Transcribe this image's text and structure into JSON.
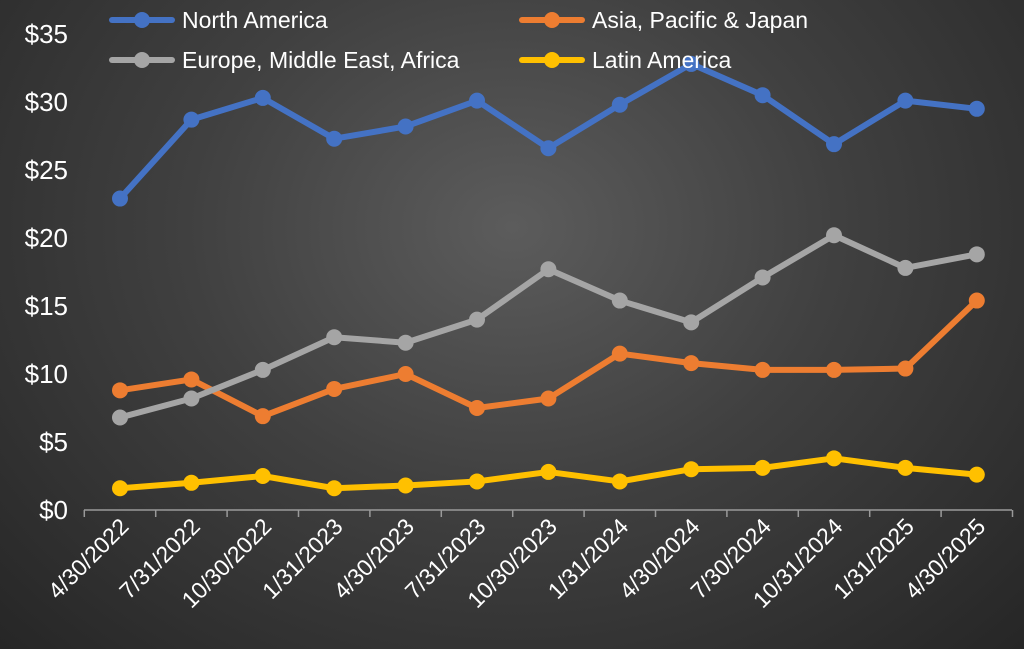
{
  "chart_data": {
    "type": "line",
    "categories": [
      "4/30/2022",
      "7/31/2022",
      "10/30/2022",
      "1/31/2023",
      "4/30/2023",
      "7/31/2023",
      "10/30/2023",
      "1/31/2024",
      "4/30/2024",
      "7/30/2024",
      "10/31/2024",
      "1/31/2025",
      "4/30/2025"
    ],
    "y_ticks": [
      "$0",
      "$5",
      "$10",
      "$15",
      "$20",
      "$25",
      "$30",
      "$35"
    ],
    "ylim": [
      0,
      35
    ],
    "grid": false,
    "legend_position": "top",
    "series": [
      {
        "name": "North America",
        "color": "#4472C4",
        "values": [
          22.9,
          28.7,
          30.3,
          27.3,
          28.2,
          30.1,
          26.6,
          29.8,
          32.8,
          30.5,
          26.9,
          30.1,
          29.5
        ]
      },
      {
        "name": "Asia, Pacific & Japan",
        "color": "#ED7D31",
        "values": [
          8.8,
          9.6,
          6.9,
          8.9,
          10.0,
          7.5,
          8.2,
          11.5,
          10.8,
          10.3,
          10.3,
          10.4,
          15.4
        ]
      },
      {
        "name": "Europe, Middle East, Africa",
        "color": "#A5A5A5",
        "values": [
          6.8,
          8.2,
          10.3,
          12.7,
          12.3,
          14.0,
          17.7,
          15.4,
          13.8,
          17.1,
          20.2,
          17.8,
          18.8
        ]
      },
      {
        "name": "Latin America",
        "color": "#FFC000",
        "values": [
          1.6,
          2.0,
          2.5,
          1.6,
          1.8,
          2.1,
          2.8,
          2.1,
          3.0,
          3.1,
          3.8,
          3.1,
          2.6
        ]
      }
    ]
  }
}
